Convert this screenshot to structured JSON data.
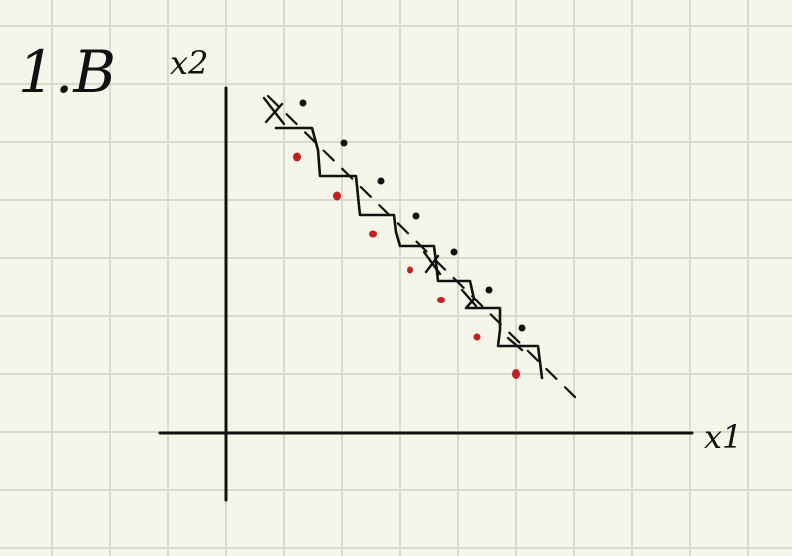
{
  "note": {
    "problem_label": "1.B",
    "x_axis_label": "x1",
    "y_axis_label": "x2"
  },
  "colors": {
    "paper": "#f6f5e9",
    "grid": "#d6dccd",
    "ink": "#111111",
    "red_points": "#c42020"
  }
}
